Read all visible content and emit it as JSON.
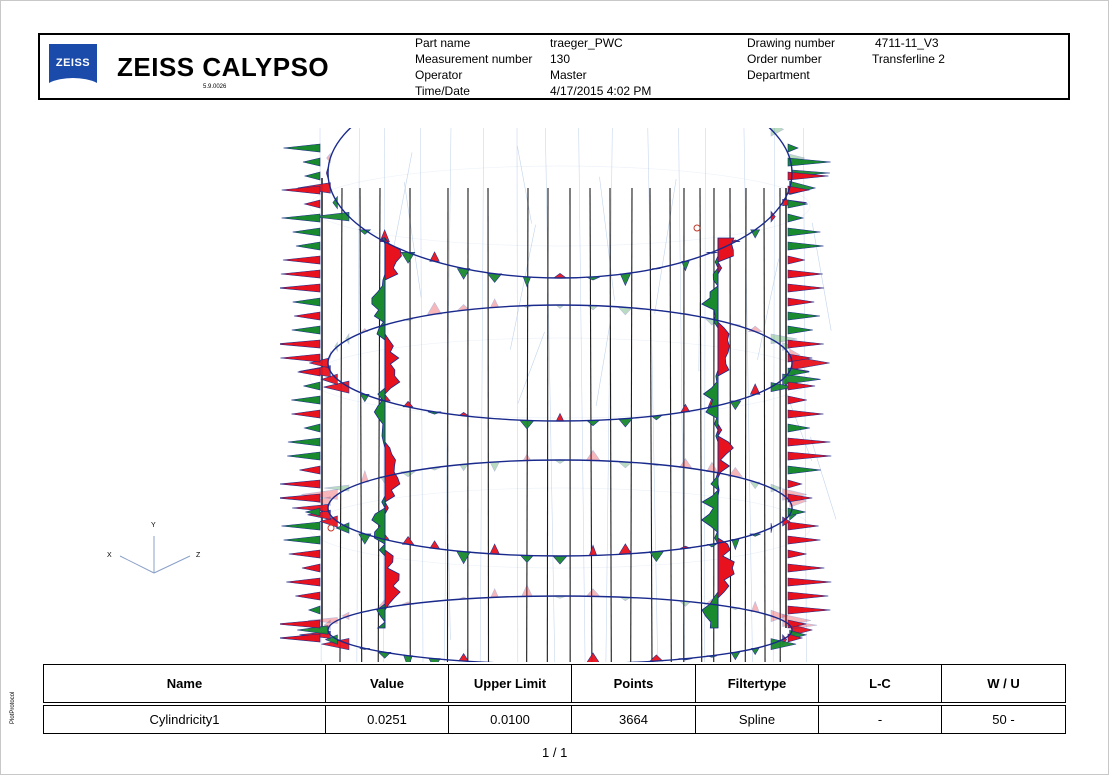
{
  "header": {
    "logo_text": "ZEISS",
    "brand": "ZEISS CALYPSO",
    "version": "5.9.0026",
    "part_name_label": "Part name",
    "part_name_value": "traeger_PWC",
    "measurement_number_label": "Measurement number",
    "measurement_number_value": "130",
    "operator_label": "Operator",
    "operator_value": "Master",
    "time_date_label": "Time/Date",
    "time_date_value": "4/17/2015 4:02 PM",
    "drawing_number_label": "Drawing number",
    "drawing_number_value": "4711-11_V3",
    "order_number_label": "Order number",
    "order_number_value": "Transferline 2",
    "department_label": "Department"
  },
  "axes": {
    "x": "X",
    "y": "Y",
    "z": "Z"
  },
  "colors": {
    "deviation_plus": "#e8121e",
    "deviation_minus": "#1a8a2e",
    "ring_outline": "#1a2a8c",
    "generator_line": "#1a1a1a",
    "background_scan": "#9ab8e0",
    "logo_blue": "#1a4bab"
  },
  "table": {
    "headers": [
      "Name",
      "Value",
      "Upper Limit",
      "Points",
      "Filtertype",
      "L-C",
      "W / U"
    ],
    "rows": [
      [
        "Cylindricity1",
        "0.0251",
        "0.0100",
        "3664",
        "Spline",
        "-",
        "50 -"
      ]
    ]
  },
  "footer": {
    "page": "1 / 1",
    "side_label": "PlotProtocol"
  }
}
